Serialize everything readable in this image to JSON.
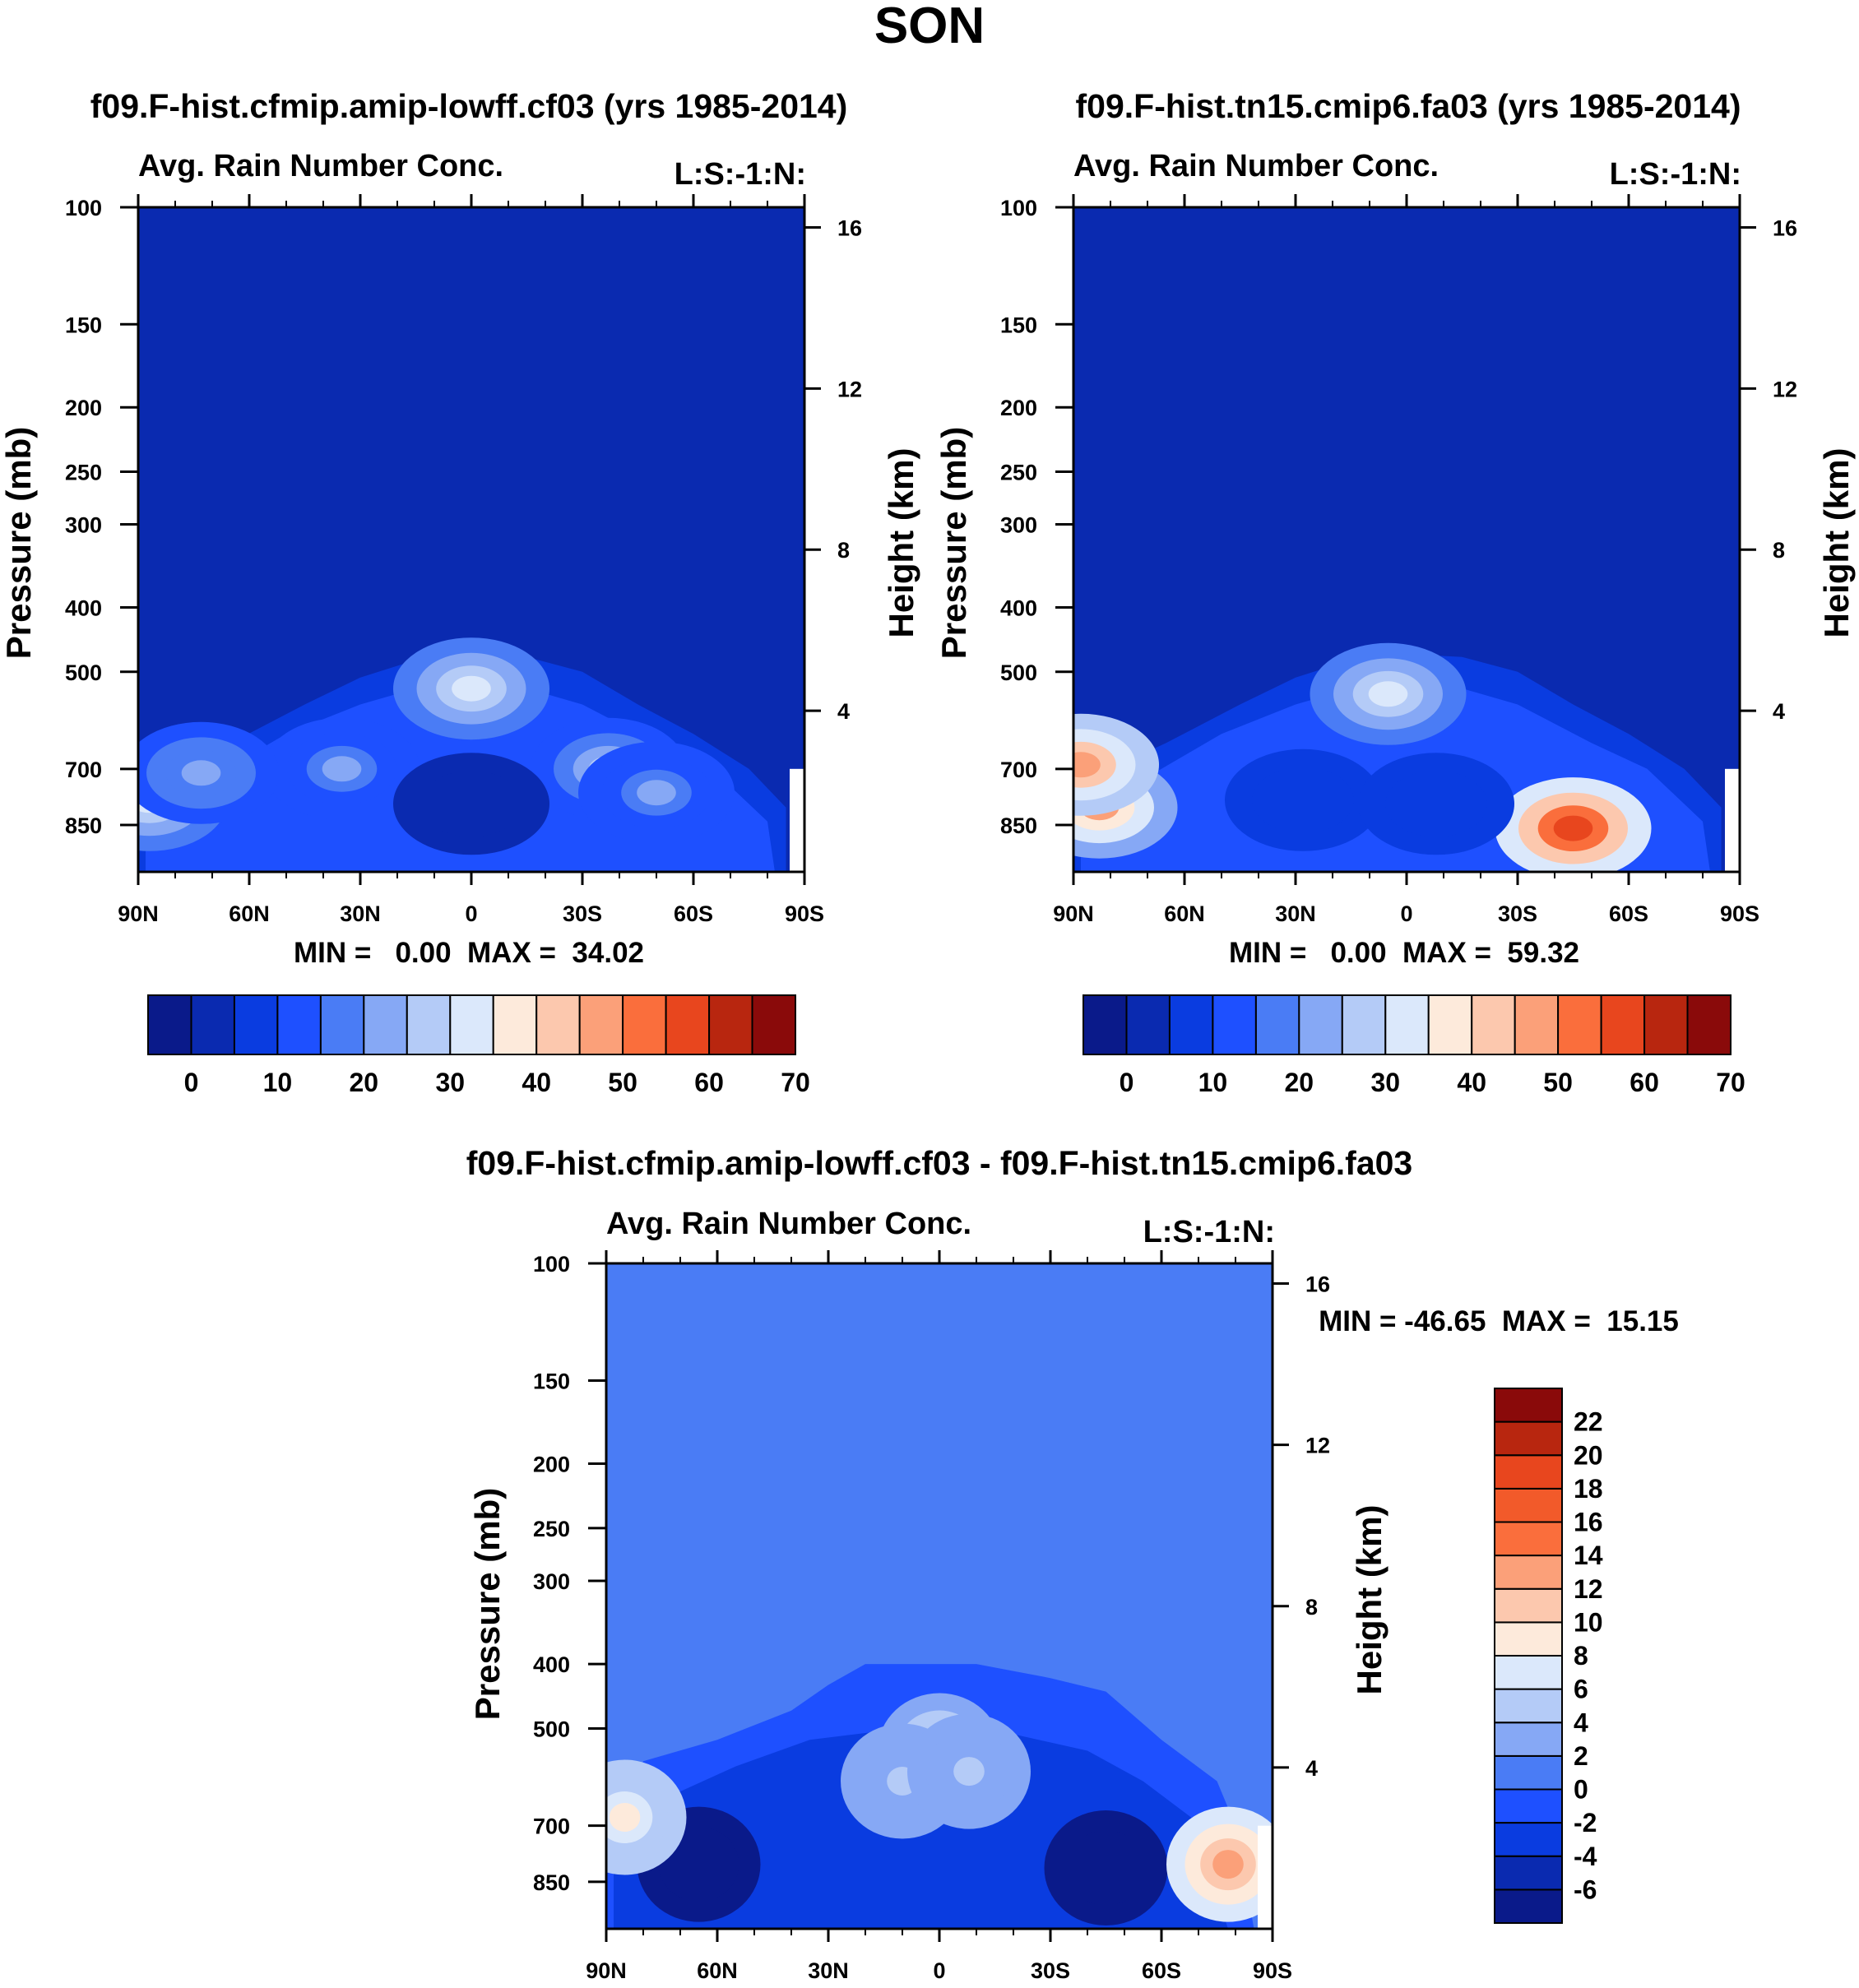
{
  "figure_title": "SON",
  "colors": {
    "scale15": [
      "#0a1a8a",
      "#0a2ab0",
      "#0a3ce0",
      "#1e50ff",
      "#4a7cf5",
      "#86a8f5",
      "#b4cbf7",
      "#dbe8fb",
      "#fdeadb",
      "#fcc8ae",
      "#fba079",
      "#fa6e3c",
      "#e8461e",
      "#b8260f",
      "#8a0a0a"
    ],
    "diff_scale16": [
      "#0a1a8a",
      "#0a2ab0",
      "#0a3ce0",
      "#1e50ff",
      "#4a7cf5",
      "#86a8f5",
      "#b4cbf7",
      "#dbe8fb",
      "#fdeadb",
      "#fcc8ae",
      "#fba079",
      "#fa6e3c",
      "#f25a2a",
      "#e8461e",
      "#b8260f",
      "#8a0a0a"
    ]
  },
  "panels": [
    {
      "title": "f09.F-hist.cfmip.amip-lowff.cf03 (yrs 1985-2014)",
      "subtitle_left": "Avg. Rain Number Conc.",
      "subtitle_right": "L:S:-1:N:",
      "ylabel": "Pressure (mb)",
      "ylabel_right": "Height (km)",
      "minmax": "MIN =   0.00  MAX =  34.02"
    },
    {
      "title": "f09.F-hist.tn15.cmip6.fa03 (yrs 1985-2014)",
      "subtitle_left": "Avg. Rain Number Conc.",
      "subtitle_right": "L:S:-1:N:",
      "ylabel": "Pressure (mb)",
      "ylabel_right": "Height (km)",
      "minmax": "MIN =   0.00  MAX =  59.32"
    },
    {
      "title": "f09.F-hist.cfmip.amip-lowff.cf03 - f09.F-hist.tn15.cmip6.fa03",
      "subtitle_left": "Avg. Rain Number Conc.",
      "subtitle_right": "L:S:-1:N:",
      "ylabel": "Pressure (mb)",
      "ylabel_right": "Height (km)",
      "minmax": "MIN = -46.65  MAX =  15.15"
    }
  ],
  "chart_data": [
    {
      "type": "heatmap",
      "title": "f09.F-hist.cfmip.amip-lowff.cf03 (yrs 1985-2014)",
      "variable": "Avg. Rain Number Conc.",
      "xlabel": "",
      "ylabel": "Pressure (mb)",
      "ylabel_right": "Height (km)",
      "x_ticks": [
        "90N",
        "60N",
        "30N",
        "0",
        "30S",
        "60S",
        "90S"
      ],
      "x_range": [
        90,
        -90
      ],
      "y_ticks": [
        100,
        150,
        200,
        250,
        300,
        400,
        500,
        700,
        850
      ],
      "y_range": [
        100,
        1000
      ],
      "y_right_ticks": [
        4,
        8,
        12,
        16
      ],
      "y_right_range": [
        0,
        16.5
      ],
      "colorbar_levels": [
        0,
        5,
        10,
        15,
        20,
        25,
        30,
        35,
        40,
        45,
        50,
        55,
        60,
        65,
        70
      ],
      "colorbar_labels": [
        "0",
        "10",
        "20",
        "30",
        "40",
        "50",
        "60",
        "70"
      ],
      "min": 0.0,
      "max": 34.02,
      "features": [
        {
          "lat": 0,
          "p": 530,
          "value": 33
        },
        {
          "lat": 35,
          "p": 700,
          "value": 20
        },
        {
          "lat": -37,
          "p": 700,
          "value": 26
        },
        {
          "lat": -50,
          "p": 760,
          "value": 20
        },
        {
          "lat": 87,
          "p": 780,
          "value": 30
        },
        {
          "lat": 73,
          "p": 710,
          "value": 22
        },
        {
          "lat": 0,
          "p": 790,
          "value": 0
        }
      ]
    },
    {
      "type": "heatmap",
      "title": "f09.F-hist.tn15.cmip6.fa03 (yrs 1985-2014)",
      "variable": "Avg. Rain Number Conc.",
      "xlabel": "",
      "ylabel": "Pressure (mb)",
      "ylabel_right": "Height (km)",
      "x_ticks": [
        "90N",
        "60N",
        "30N",
        "0",
        "30S",
        "60S",
        "90S"
      ],
      "x_range": [
        90,
        -90
      ],
      "y_ticks": [
        100,
        150,
        200,
        250,
        300,
        400,
        500,
        700,
        850
      ],
      "y_range": [
        100,
        1000
      ],
      "y_right_ticks": [
        4,
        8,
        12,
        16
      ],
      "y_right_range": [
        0,
        16.5
      ],
      "colorbar_levels": [
        0,
        5,
        10,
        15,
        20,
        25,
        30,
        35,
        40,
        45,
        50,
        55,
        60,
        65,
        70
      ],
      "colorbar_labels": [
        "0",
        "10",
        "20",
        "30",
        "40",
        "50",
        "60",
        "70"
      ],
      "min": 0.0,
      "max": 59.32,
      "features": [
        {
          "lat": -45,
          "p": 860,
          "value": 59
        },
        {
          "lat": 83,
          "p": 800,
          "value": 45
        },
        {
          "lat": 88,
          "p": 690,
          "value": 48
        },
        {
          "lat": 5,
          "p": 540,
          "value": 30
        },
        {
          "lat": 28,
          "p": 780,
          "value": 5
        },
        {
          "lat": -8,
          "p": 790,
          "value": 5
        }
      ]
    },
    {
      "type": "heatmap",
      "title": "f09.F-hist.cfmip.amip-lowff.cf03 - f09.F-hist.tn15.cmip6.fa03",
      "variable": "Avg. Rain Number Conc.",
      "xlabel": "",
      "ylabel": "Pressure (mb)",
      "ylabel_right": "Height (km)",
      "x_ticks": [
        "90N",
        "60N",
        "30N",
        "0",
        "30S",
        "60S",
        "90S"
      ],
      "x_range": [
        90,
        -90
      ],
      "y_ticks": [
        100,
        150,
        200,
        250,
        300,
        400,
        500,
        700,
        850
      ],
      "y_range": [
        100,
        1000
      ],
      "y_right_ticks": [
        4,
        8,
        12,
        16
      ],
      "y_right_range": [
        0,
        16.5
      ],
      "colorbar_levels": [
        -8,
        -6,
        -4,
        -2,
        0,
        2,
        4,
        6,
        8,
        10,
        12,
        14,
        16,
        18,
        20,
        22,
        24
      ],
      "colorbar_labels": [
        "-6",
        "-4",
        "-2",
        "0",
        "2",
        "4",
        "6",
        "8",
        "10",
        "12",
        "14",
        "16",
        "18",
        "20",
        "22"
      ],
      "min": -46.65,
      "max": 15.15,
      "features": [
        {
          "lat": 0,
          "p": 540,
          "value": 6
        },
        {
          "lat": 10,
          "p": 600,
          "value": 4
        },
        {
          "lat": -8,
          "p": 580,
          "value": 4
        },
        {
          "lat": 65,
          "p": 800,
          "value": -10
        },
        {
          "lat": -45,
          "p": 810,
          "value": -10
        },
        {
          "lat": -78,
          "p": 800,
          "value": 12
        },
        {
          "lat": 85,
          "p": 680,
          "value": 8
        }
      ]
    }
  ]
}
